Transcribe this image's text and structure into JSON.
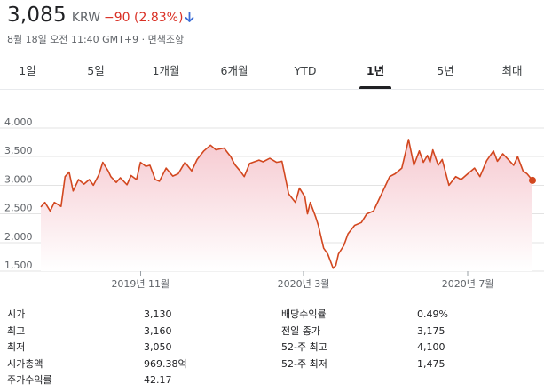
{
  "quote": {
    "price": "3,085",
    "currency": "KRW",
    "change": "−90 (2.83%)",
    "direction_icon": "arrow-down-icon",
    "timestamp": "8월 18일 오전 11:40 GMT+9 · 면책조항"
  },
  "colors": {
    "line": "#d2471f",
    "change_negative": "#d93025",
    "fill_top": "#f6c9d0",
    "fill_bottom": "#ffffff",
    "active_tab": "#202124"
  },
  "tabs": [
    {
      "label": "1일"
    },
    {
      "label": "5일"
    },
    {
      "label": "1개월"
    },
    {
      "label": "6개월"
    },
    {
      "label": "YTD"
    },
    {
      "label": "1년",
      "active": true
    },
    {
      "label": "5년"
    },
    {
      "label": "최대"
    }
  ],
  "chart_data": {
    "type": "line",
    "ylim": [
      1500,
      4000
    ],
    "yticks": [
      1500,
      2000,
      2500,
      3000,
      3500,
      4000
    ],
    "ytick_labels": [
      "1,500",
      "2,000",
      "2,500",
      "3,000",
      "3,500",
      "4,000"
    ],
    "xlim": [
      "2019-08-19",
      "2020-08-18"
    ],
    "xticks": [
      {
        "date": "2019-11-01",
        "label": "2019년 11월"
      },
      {
        "date": "2020-03-01",
        "label": "2020년 3월"
      },
      {
        "date": "2020-07-01",
        "label": "2020년 7월"
      }
    ],
    "grid": true,
    "area_fill": true,
    "series": [
      {
        "x": [
          "2019-08-19",
          "2019-08-22",
          "2019-08-26",
          "2019-08-29",
          "2019-09-03",
          "2019-09-06",
          "2019-09-09",
          "2019-09-12",
          "2019-09-16",
          "2019-09-18",
          "2019-09-20",
          "2019-09-24",
          "2019-09-27",
          "2019-10-01",
          "2019-10-04",
          "2019-10-08",
          "2019-10-10",
          "2019-10-14",
          "2019-10-17",
          "2019-10-22",
          "2019-10-25",
          "2019-10-29",
          "2019-11-01",
          "2019-11-05",
          "2019-11-08",
          "2019-11-12",
          "2019-11-15",
          "2019-11-20",
          "2019-11-25",
          "2019-11-29",
          "2019-12-04",
          "2019-12-09",
          "2019-12-13",
          "2019-12-18",
          "2019-12-23",
          "2019-12-27",
          "2020-01-02",
          "2020-01-07",
          "2020-01-10",
          "2020-01-14",
          "2020-01-17",
          "2020-01-21",
          "2020-01-28",
          "2020-01-31",
          "2020-02-05",
          "2020-02-10",
          "2020-02-14",
          "2020-02-19",
          "2020-02-24",
          "2020-02-27",
          "2020-03-02",
          "2020-03-04",
          "2020-03-06",
          "2020-03-10",
          "2020-03-12",
          "2020-03-16",
          "2020-03-19",
          "2020-03-23",
          "2020-03-25",
          "2020-03-27",
          "2020-03-31",
          "2020-04-03",
          "2020-04-08",
          "2020-04-13",
          "2020-04-17",
          "2020-04-22",
          "2020-04-28",
          "2020-05-04",
          "2020-05-08",
          "2020-05-13",
          "2020-05-18",
          "2020-05-22",
          "2020-05-26",
          "2020-05-29",
          "2020-06-01",
          "2020-06-03",
          "2020-06-05",
          "2020-06-09",
          "2020-06-12",
          "2020-06-17",
          "2020-06-22",
          "2020-06-26",
          "2020-07-01",
          "2020-07-06",
          "2020-07-10",
          "2020-07-15",
          "2020-07-20",
          "2020-07-23",
          "2020-07-27",
          "2020-07-31",
          "2020-08-04",
          "2020-08-07",
          "2020-08-11",
          "2020-08-14",
          "2020-08-18"
        ],
        "y": [
          2620,
          2700,
          2550,
          2700,
          2630,
          3150,
          3230,
          2900,
          3100,
          3060,
          3020,
          3100,
          3000,
          3180,
          3400,
          3250,
          3150,
          3050,
          3130,
          3010,
          3170,
          3100,
          3400,
          3330,
          3350,
          3100,
          3070,
          3300,
          3160,
          3200,
          3400,
          3250,
          3450,
          3600,
          3700,
          3620,
          3650,
          3500,
          3360,
          3250,
          3150,
          3380,
          3440,
          3410,
          3470,
          3400,
          3420,
          2850,
          2700,
          2950,
          2800,
          2500,
          2700,
          2450,
          2300,
          1900,
          1800,
          1550,
          1600,
          1800,
          1950,
          2150,
          2300,
          2350,
          2500,
          2550,
          2850,
          3150,
          3200,
          3300,
          3800,
          3350,
          3600,
          3400,
          3520,
          3400,
          3620,
          3350,
          3450,
          3000,
          3150,
          3100,
          3200,
          3300,
          3150,
          3430,
          3600,
          3420,
          3550,
          3450,
          3350,
          3500,
          3250,
          3200,
          3085
        ]
      }
    ]
  },
  "stats_left": [
    {
      "label": "시가",
      "value": "3,130"
    },
    {
      "label": "최고",
      "value": "3,160"
    },
    {
      "label": "최저",
      "value": "3,050"
    },
    {
      "label": "시가총액",
      "value": "969.38억"
    },
    {
      "label": "주가수익률",
      "value": "42.17"
    }
  ],
  "stats_right": [
    {
      "label": "배당수익률",
      "value": "0.49%"
    },
    {
      "label": "전일 종가",
      "value": "3,175"
    },
    {
      "label": "52-주 최고",
      "value": "4,100"
    },
    {
      "label": "52-주 최저",
      "value": "1,475"
    }
  ]
}
